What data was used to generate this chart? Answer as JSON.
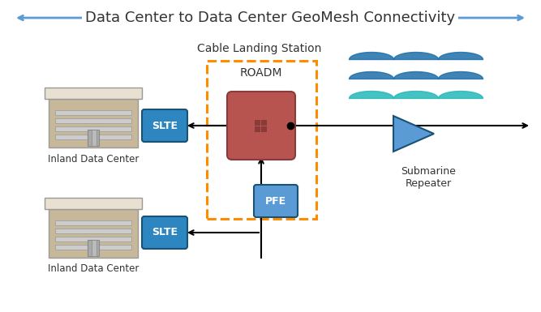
{
  "title": "Data Center to Data Center GeoMesh Connectivity",
  "title_fontsize": 13,
  "title_color": "#333333",
  "bg_color": "#ffffff",
  "arrow_color": "#5B9BD5",
  "line_color": "#000000",
  "slte_color": "#2E86C1",
  "slte_text": "SLTE",
  "slte_text_color": "#ffffff",
  "pfe_color": "#5B9BD5",
  "pfe_text": "PFE",
  "pfe_text_color": "#ffffff",
  "roadm_color": "#B85450",
  "roadm_text": "ROADM",
  "roadm_text_color": "#333333",
  "cable_station_text": "Cable Landing Station",
  "cable_box_color": "#FF8C00",
  "submarine_text": "Submarine\nRepeater",
  "submarine_color": "#5B9BD5",
  "inland_text": "Inland Data Center",
  "building_wall": "#C8B89A",
  "building_roof": "#E8E0D0",
  "building_window": "#888888",
  "building_door": "#888888"
}
